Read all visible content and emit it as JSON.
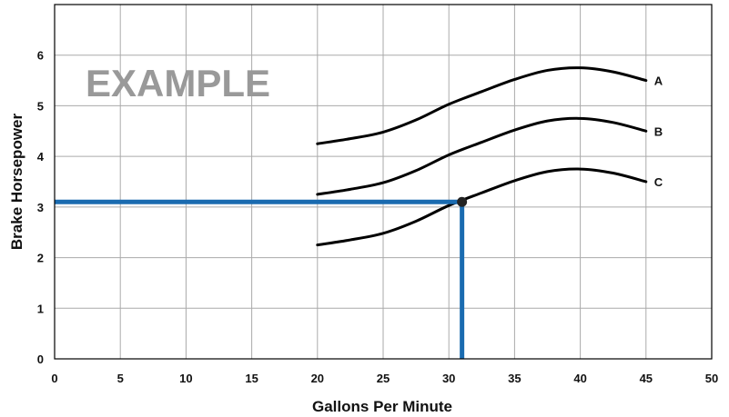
{
  "chart_data": {
    "type": "line",
    "watermark": "EXAMPLE",
    "xlabel": "Gallons Per Minute",
    "ylabel": "Brake Horsepower",
    "xlim": [
      0,
      50
    ],
    "ylim": [
      0,
      7
    ],
    "x_ticks": [
      "0",
      "5",
      "10",
      "15",
      "20",
      "25",
      "30",
      "35",
      "40",
      "45",
      "50"
    ],
    "y_ticks": [
      "0",
      "1",
      "2",
      "3",
      "4",
      "5",
      "6"
    ],
    "grid": true,
    "series": [
      {
        "name": "A",
        "x": [
          20,
          22.5,
          25,
          27.5,
          30,
          32.5,
          35,
          37.5,
          40,
          42.5,
          45
        ],
        "y": [
          4.25,
          4.35,
          4.48,
          4.72,
          5.03,
          5.28,
          5.52,
          5.7,
          5.75,
          5.67,
          5.5
        ]
      },
      {
        "name": "B",
        "x": [
          20,
          22.5,
          25,
          27.5,
          30,
          32.5,
          35,
          37.5,
          40,
          42.5,
          45
        ],
        "y": [
          3.25,
          3.35,
          3.48,
          3.72,
          4.03,
          4.28,
          4.52,
          4.7,
          4.75,
          4.67,
          4.5
        ]
      },
      {
        "name": "C",
        "x": [
          20,
          22.5,
          25,
          27.5,
          30,
          32.5,
          35,
          37.5,
          40,
          42.5,
          45
        ],
        "y": [
          2.25,
          2.35,
          2.48,
          2.72,
          3.03,
          3.28,
          3.52,
          3.7,
          3.75,
          3.67,
          3.5
        ]
      }
    ],
    "highlight": {
      "x": 31,
      "y": 3.1
    },
    "colors": {
      "curve": "#000000",
      "guide": "#1a6bb0",
      "grid": "#aaaaaa",
      "watermark": "#999999"
    }
  }
}
